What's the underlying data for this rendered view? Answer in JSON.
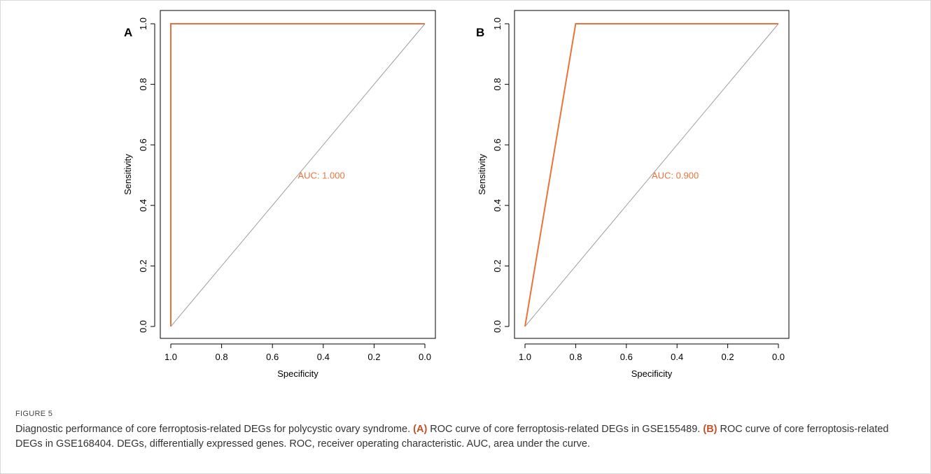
{
  "colors": {
    "roc_line": "#E8743B",
    "diagonal": "#9e9e9e",
    "axis": "#000000"
  },
  "chart_data": [
    {
      "type": "line",
      "panel_label": "A",
      "xlabel": "Specificity",
      "ylabel": "Sensitivity",
      "xlim": [
        1.0,
        0.0
      ],
      "ylim": [
        0.0,
        1.0
      ],
      "x_reversed": true,
      "x_ticks": [
        "1.0",
        "0.8",
        "0.6",
        "0.4",
        "0.2",
        "0.0"
      ],
      "y_ticks": [
        "0.0",
        "0.2",
        "0.4",
        "0.6",
        "0.8",
        "1.0"
      ],
      "grid": false,
      "series": [
        {
          "specificity": [
            1.0,
            1.0,
            0.0
          ],
          "sensitivity": [
            0.0,
            1.0,
            1.0
          ]
        }
      ],
      "annotation": {
        "text": "AUC: 1.000",
        "x": 0.5,
        "y": 0.5
      }
    },
    {
      "type": "line",
      "panel_label": "B",
      "xlabel": "Specificity",
      "ylabel": "Sensitivity",
      "xlim": [
        1.0,
        0.0
      ],
      "ylim": [
        0.0,
        1.0
      ],
      "x_reversed": true,
      "x_ticks": [
        "1.0",
        "0.8",
        "0.6",
        "0.4",
        "0.2",
        "0.0"
      ],
      "y_ticks": [
        "0.0",
        "0.2",
        "0.4",
        "0.6",
        "0.8",
        "1.0"
      ],
      "grid": false,
      "series": [
        {
          "specificity": [
            1.0,
            0.8,
            0.0
          ],
          "sensitivity": [
            0.0,
            1.0,
            1.0
          ]
        }
      ],
      "annotation": {
        "text": "AUC: 0.900",
        "x": 0.5,
        "y": 0.5
      }
    }
  ],
  "caption": {
    "figure_label": "FIGURE 5",
    "intro": "Diagnostic performance of core ferroptosis-related DEGs for polycystic ovary syndrome. ",
    "part_a_label": "(A)",
    "part_a_text": " ROC curve of core ferroptosis-related DEGs in GSE155489. ",
    "part_b_label": "(B)",
    "part_b_text": " ROC curve of core ferroptosis-related DEGs in GSE168404. DEGs, differentially expressed genes. ROC, receiver operating characteristic. AUC, area under the curve."
  }
}
